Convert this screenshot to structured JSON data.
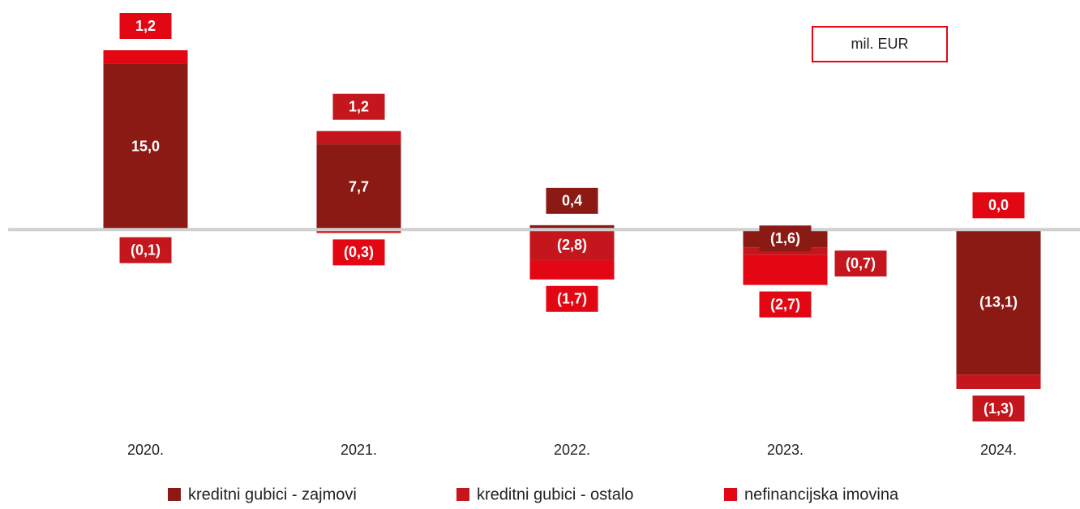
{
  "chart_data": {
    "type": "stacked-bar",
    "unit": "mil. EUR",
    "categories": [
      "2020.",
      "2021.",
      "2022.",
      "2023.",
      "2024."
    ],
    "series": [
      {
        "name": "kreditni gubici - zajmovi",
        "color": "#8b1a14",
        "values": [
          15.0,
          7.7,
          0.4,
          -1.6,
          -13.1
        ],
        "value_labels": [
          "15,0",
          "7,7",
          "0,4",
          "(1,6)",
          "(13,1)"
        ]
      },
      {
        "name": "kreditni gubici - ostalo",
        "color": "#c4161c",
        "values": [
          -0.1,
          1.2,
          -2.8,
          -0.7,
          -1.3
        ],
        "value_labels": [
          "(0,1)",
          "1,2",
          "(2,8)",
          "(0,7)",
          "(1,3)"
        ]
      },
      {
        "name": "nefinancijska imovina",
        "color": "#e30613",
        "values": [
          1.2,
          -0.3,
          -1.7,
          -2.7,
          0.0
        ],
        "value_labels": [
          "1,2",
          "(0,3)",
          "(1,7)",
          "(2,7)",
          "0,0"
        ]
      }
    ]
  }
}
